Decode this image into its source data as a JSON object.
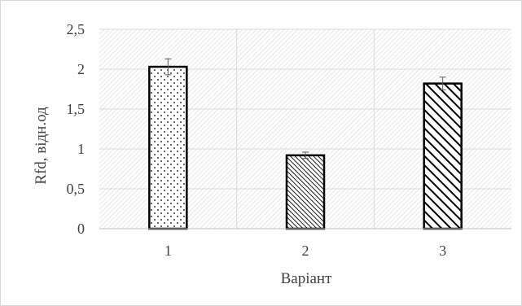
{
  "chart_data": {
    "type": "bar",
    "title": "",
    "xlabel": "Варіант",
    "ylabel": "Rfd, відн.од",
    "categories": [
      "1",
      "2",
      "3"
    ],
    "values": [
      2.03,
      0.92,
      1.82
    ],
    "errors": [
      0.1,
      0.04,
      0.08
    ],
    "ylim": [
      0,
      2.5
    ],
    "yticks": [
      "0",
      "0,5",
      "1",
      "1,5",
      "2",
      "2,5"
    ],
    "ytick_values": [
      0,
      0.5,
      1,
      1.5,
      2,
      2.5
    ],
    "grid": true,
    "legend": "none",
    "bar_patterns": [
      "dots",
      "fine-diagonal",
      "wide-diagonal"
    ],
    "colors": {
      "bar_stroke": "#000000",
      "bar_fill": "#ffffff",
      "plot_hatch": "#d0d0d0",
      "gridline": "#d9d9d9",
      "text": "#404040",
      "error_bar": "#595959"
    }
  }
}
